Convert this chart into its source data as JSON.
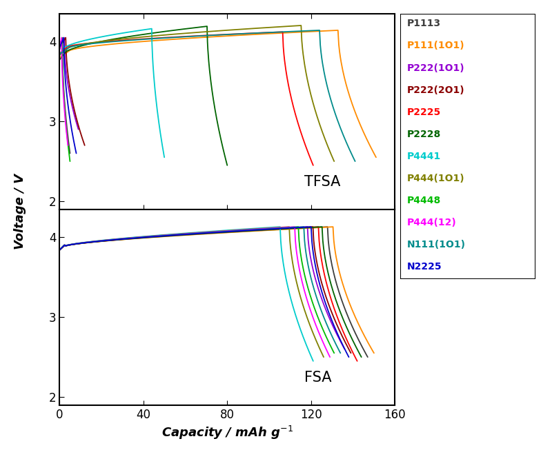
{
  "legend_labels": [
    "P1113",
    "P111(1O1)",
    "P222(1O1)",
    "P222(2O1)",
    "P2225",
    "P2228",
    "P4441",
    "P444(1O1)",
    "P4448",
    "P444(12)",
    "N111(1O1)",
    "N2225"
  ],
  "legend_colors": [
    "#3d3d3d",
    "#FF8C00",
    "#9400D3",
    "#8B0000",
    "#FF0000",
    "#006400",
    "#00CCCC",
    "#808000",
    "#00BB00",
    "#FF00FF",
    "#008B8B",
    "#0000CC"
  ],
  "xlabel": "Capacity / mAh g⁻¹",
  "ylabel": "Voltage / V",
  "label_tfsa": "TFSA",
  "label_fsa": "FSA",
  "xlim": [
    0,
    160
  ],
  "ylim": [
    1.9,
    4.35
  ],
  "yticks": [
    2.0,
    3.0,
    4.0
  ],
  "xticks": [
    0,
    40,
    80,
    120,
    160
  ],
  "tfsa_capacities": {
    "P1113": 5,
    "P111(1O1)": 151,
    "P222(1O1)": 9,
    "P222(2O1)": 12,
    "P2225": 121,
    "P2228": 80,
    "P4441": 50,
    "P444(1O1)": 131,
    "P4448": 5,
    "P444(12)": 4,
    "N111(1O1)": 141,
    "N2225": 8
  },
  "tfsa_v_end": {
    "P1113": 2.6,
    "P111(1O1)": 2.55,
    "P222(1O1)": 2.9,
    "P222(2O1)": 2.7,
    "P2225": 2.45,
    "P2228": 2.45,
    "P4441": 2.55,
    "P444(1O1)": 2.5,
    "P4448": 2.5,
    "P444(12)": 2.7,
    "N111(1O1)": 2.5,
    "N2225": 2.6
  },
  "tfsa_v_plateau": {
    "P1113": 3.95,
    "P111(1O1)": 3.88,
    "P222(1O1)": 3.98,
    "P222(2O1)": 3.97,
    "P2225": 3.93,
    "P2228": 3.85,
    "P4441": 3.9,
    "P444(1O1)": 3.91,
    "P4448": 3.95,
    "P444(12)": 3.96,
    "N111(1O1)": 3.92,
    "N2225": 3.97
  },
  "tfsa_v_top": {
    "P1113": 4.05,
    "P111(1O1)": 4.14,
    "P222(1O1)": 4.05,
    "P222(2O1)": 4.05,
    "P2225": 4.12,
    "P2228": 4.19,
    "P4441": 4.16,
    "P444(1O1)": 4.2,
    "P4448": 4.05,
    "P444(12)": 4.05,
    "N111(1O1)": 4.14,
    "N2225": 4.05
  },
  "fsa_capacities": {
    "P1113": 147,
    "P111(1O1)": 150,
    "P222(1O1)": 136,
    "P222(2O1)": 139,
    "P2225": 142,
    "P2228": 144,
    "P4441": 121,
    "P444(1O1)": 126,
    "P4448": 131,
    "P444(12)": 129,
    "N111(1O1)": 134,
    "N2225": 138
  },
  "fsa_v_end": {
    "P1113": 2.5,
    "P111(1O1)": 2.55,
    "P222(1O1)": 2.6,
    "P222(2O1)": 2.55,
    "P2225": 2.45,
    "P2228": 2.5,
    "P4441": 2.45,
    "P444(1O1)": 2.5,
    "P4448": 2.55,
    "P444(12)": 2.5,
    "N111(1O1)": 2.55,
    "N2225": 2.5
  }
}
